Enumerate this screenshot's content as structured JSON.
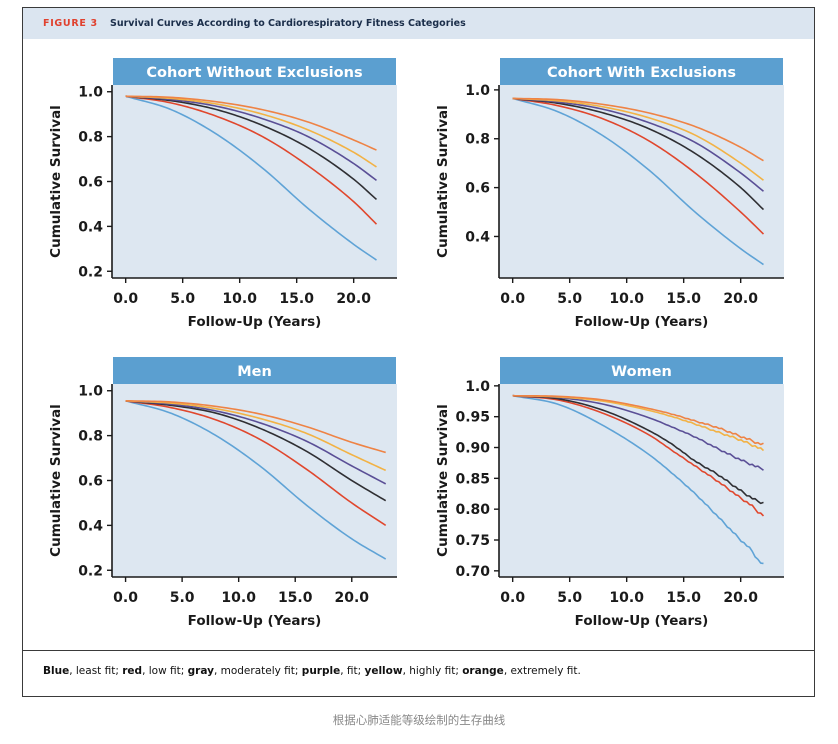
{
  "figure": {
    "label": "FIGURE 3",
    "title": "Survival Curves According to Cardiorespiratory Fitness Categories"
  },
  "legend_note": [
    {
      "text": "Blue",
      "bold": true
    },
    {
      "text": ", least fit; ",
      "bold": false
    },
    {
      "text": "red",
      "bold": true
    },
    {
      "text": ", low fit; ",
      "bold": false
    },
    {
      "text": "gray",
      "bold": true
    },
    {
      "text": ", moderately fit; ",
      "bold": false
    },
    {
      "text": "purple",
      "bold": true
    },
    {
      "text": ", fit; ",
      "bold": false
    },
    {
      "text": "yellow",
      "bold": true
    },
    {
      "text": ", highly fit; ",
      "bold": false
    },
    {
      "text": "orange",
      "bold": true
    },
    {
      "text": ", extremely fit.",
      "bold": false
    }
  ],
  "caption": "根据心肺适能等级绘制的生存曲线",
  "colors": {
    "least_fit": "#5fa3d6",
    "low_fit": "#e0472d",
    "moderately_fit": "#2f2f33",
    "fit": "#5a4f96",
    "highly_fit": "#f2b245",
    "extremely_fit": "#ee8345",
    "panel_title_bg": "#5b9fd0",
    "plot_bg": "#dde7f1"
  },
  "chart_data": [
    {
      "type": "line",
      "title": "Cohort Without Exclusions",
      "xlabel": "Follow-Up (Years)",
      "ylabel": "Cumulative Survival",
      "xlim": [
        -1.2,
        23.8
      ],
      "ylim": [
        0.17,
        1.03
      ],
      "xticks": [
        0,
        5,
        10,
        15,
        20
      ],
      "xtick_labels": [
        "0.0",
        "5.0",
        "10.0",
        "15.0",
        "20.0"
      ],
      "yticks": [
        0.2,
        0.4,
        0.6,
        0.8,
        1.0
      ],
      "ytick_labels": [
        "0.2",
        "0.4",
        "0.6",
        "0.8",
        "1.0"
      ],
      "x": [
        0,
        4,
        8,
        12,
        16,
        20,
        22
      ],
      "series": [
        {
          "name": "least fit",
          "color_key": "least_fit",
          "values": [
            0.98,
            0.92,
            0.81,
            0.66,
            0.48,
            0.32,
            0.25
          ]
        },
        {
          "name": "low fit",
          "color_key": "low_fit",
          "values": [
            0.98,
            0.95,
            0.89,
            0.8,
            0.67,
            0.51,
            0.41
          ]
        },
        {
          "name": "moderately fit",
          "color_key": "moderately_fit",
          "values": [
            0.98,
            0.96,
            0.92,
            0.85,
            0.75,
            0.61,
            0.52
          ]
        },
        {
          "name": "fit",
          "color_key": "fit",
          "values": [
            0.98,
            0.965,
            0.935,
            0.88,
            0.8,
            0.68,
            0.605
          ]
        },
        {
          "name": "highly fit",
          "color_key": "highly_fit",
          "values": [
            0.98,
            0.97,
            0.945,
            0.9,
            0.83,
            0.73,
            0.665
          ]
        },
        {
          "name": "extremely fit",
          "color_key": "extremely_fit",
          "values": [
            0.98,
            0.975,
            0.955,
            0.92,
            0.865,
            0.785,
            0.74
          ]
        }
      ]
    },
    {
      "type": "line",
      "title": "Cohort With Exclusions",
      "xlabel": "Follow-Up (Years)",
      "ylabel": "Cumulative Survival",
      "xlim": [
        -1.2,
        23.8
      ],
      "ylim": [
        0.23,
        1.02
      ],
      "xticks": [
        0,
        5,
        10,
        15,
        20
      ],
      "xtick_labels": [
        "0.0",
        "5.0",
        "10.0",
        "15.0",
        "20.0"
      ],
      "yticks": [
        0.4,
        0.6,
        0.8,
        1.0
      ],
      "ytick_labels": [
        "0.4",
        "0.6",
        "0.8",
        "1.0"
      ],
      "x": [
        0,
        4,
        8,
        12,
        16,
        20,
        22
      ],
      "series": [
        {
          "name": "least fit",
          "color_key": "least_fit",
          "values": [
            0.965,
            0.91,
            0.81,
            0.67,
            0.5,
            0.35,
            0.285
          ]
        },
        {
          "name": "low fit",
          "color_key": "low_fit",
          "values": [
            0.965,
            0.935,
            0.88,
            0.79,
            0.66,
            0.5,
            0.41
          ]
        },
        {
          "name": "moderately fit",
          "color_key": "moderately_fit",
          "values": [
            0.965,
            0.945,
            0.905,
            0.84,
            0.74,
            0.6,
            0.51
          ]
        },
        {
          "name": "fit",
          "color_key": "fit",
          "values": [
            0.965,
            0.95,
            0.92,
            0.865,
            0.785,
            0.66,
            0.585
          ]
        },
        {
          "name": "highly fit",
          "color_key": "highly_fit",
          "values": [
            0.965,
            0.955,
            0.93,
            0.885,
            0.815,
            0.7,
            0.63
          ]
        },
        {
          "name": "extremely fit",
          "color_key": "extremely_fit",
          "values": [
            0.965,
            0.96,
            0.94,
            0.905,
            0.85,
            0.765,
            0.71
          ]
        }
      ]
    },
    {
      "type": "line",
      "title": "Men",
      "xlabel": "Follow-Up (Years)",
      "ylabel": "Cumulative Survival",
      "xlim": [
        -1.2,
        24.0
      ],
      "ylim": [
        0.17,
        1.03
      ],
      "xticks": [
        0,
        5,
        10,
        15,
        20
      ],
      "xtick_labels": [
        "0.0",
        "5.0",
        "10.0",
        "15.0",
        "20.0"
      ],
      "yticks": [
        0.2,
        0.4,
        0.6,
        0.8,
        1.0
      ],
      "ytick_labels": [
        "0.2",
        "0.4",
        "0.6",
        "0.8",
        "1.0"
      ],
      "x": [
        0,
        4,
        8,
        12,
        16,
        20,
        23
      ],
      "series": [
        {
          "name": "least fit",
          "color_key": "least_fit",
          "values": [
            0.955,
            0.9,
            0.8,
            0.66,
            0.49,
            0.34,
            0.25
          ]
        },
        {
          "name": "low fit",
          "color_key": "low_fit",
          "values": [
            0.955,
            0.925,
            0.87,
            0.78,
            0.65,
            0.5,
            0.4
          ]
        },
        {
          "name": "moderately fit",
          "color_key": "moderately_fit",
          "values": [
            0.955,
            0.935,
            0.9,
            0.83,
            0.73,
            0.6,
            0.51
          ]
        },
        {
          "name": "fit",
          "color_key": "fit",
          "values": [
            0.955,
            0.94,
            0.91,
            0.855,
            0.775,
            0.665,
            0.585
          ]
        },
        {
          "name": "highly fit",
          "color_key": "highly_fit",
          "values": [
            0.955,
            0.945,
            0.92,
            0.875,
            0.81,
            0.715,
            0.645
          ]
        },
        {
          "name": "extremely fit",
          "color_key": "extremely_fit",
          "values": [
            0.955,
            0.95,
            0.93,
            0.895,
            0.84,
            0.77,
            0.725
          ]
        }
      ]
    },
    {
      "type": "line",
      "title": "Women",
      "xlabel": "Follow-Up (Years)",
      "ylabel": "Cumulative Survival",
      "xlim": [
        -1.2,
        23.8
      ],
      "ylim": [
        0.69,
        1.003
      ],
      "xticks": [
        0,
        5,
        10,
        15,
        20
      ],
      "xtick_labels": [
        "0.0",
        "5.0",
        "10.0",
        "15.0",
        "20.0"
      ],
      "yticks": [
        0.7,
        0.75,
        0.8,
        0.85,
        0.9,
        0.95,
        1.0
      ],
      "ytick_labels": [
        "0.70",
        "0.75",
        "0.80",
        "0.85",
        "0.90",
        "0.95",
        "1.0"
      ],
      "x": [
        0,
        4,
        8,
        12,
        14,
        16,
        18,
        20,
        21,
        21.5,
        22
      ],
      "series": [
        {
          "name": "least fit",
          "color_key": "least_fit",
          "values": [
            0.984,
            0.97,
            0.935,
            0.888,
            0.858,
            0.825,
            0.788,
            0.75,
            0.732,
            0.718,
            0.71
          ]
        },
        {
          "name": "low fit",
          "color_key": "low_fit",
          "values": [
            0.984,
            0.977,
            0.955,
            0.92,
            0.895,
            0.87,
            0.845,
            0.818,
            0.805,
            0.796,
            0.79
          ]
        },
        {
          "name": "moderately fit",
          "color_key": "moderately_fit",
          "values": [
            0.984,
            0.979,
            0.96,
            0.927,
            0.905,
            0.878,
            0.856,
            0.83,
            0.818,
            0.813,
            0.81
          ]
        },
        {
          "name": "fit",
          "color_key": "fit",
          "values": [
            0.984,
            0.981,
            0.97,
            0.948,
            0.933,
            0.917,
            0.898,
            0.88,
            0.872,
            0.868,
            0.865
          ]
        },
        {
          "name": "highly fit",
          "color_key": "highly_fit",
          "values": [
            0.984,
            0.982,
            0.975,
            0.96,
            0.95,
            0.938,
            0.925,
            0.912,
            0.904,
            0.9,
            0.895
          ]
        },
        {
          "name": "extremely fit",
          "color_key": "extremely_fit",
          "values": [
            0.984,
            0.983,
            0.977,
            0.963,
            0.954,
            0.943,
            0.932,
            0.918,
            0.911,
            0.907,
            0.905
          ]
        }
      ]
    }
  ]
}
